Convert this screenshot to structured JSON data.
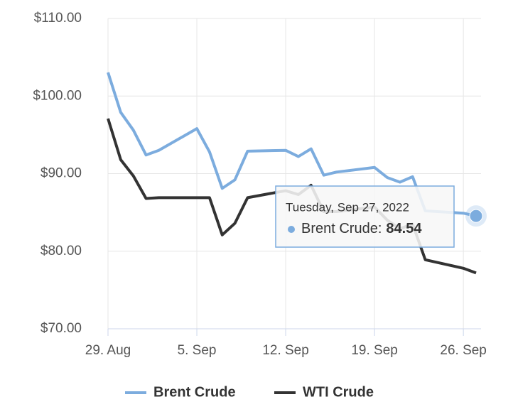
{
  "chart_data": {
    "type": "line",
    "x": [
      "2022-08-29",
      "2022-08-30",
      "2022-08-31",
      "2022-09-01",
      "2022-09-02",
      "2022-09-05",
      "2022-09-06",
      "2022-09-07",
      "2022-09-08",
      "2022-09-09",
      "2022-09-12",
      "2022-09-13",
      "2022-09-14",
      "2022-09-15",
      "2022-09-16",
      "2022-09-19",
      "2022-09-20",
      "2022-09-21",
      "2022-09-22",
      "2022-09-23",
      "2022-09-26",
      "2022-09-27"
    ],
    "series": [
      {
        "name": "Brent Crude",
        "color": "#7cacde",
        "values": [
          103.04,
          97.9,
          95.6,
          92.4,
          93.0,
          95.8,
          92.8,
          88.1,
          89.2,
          92.9,
          93.0,
          92.2,
          93.2,
          89.8,
          90.2,
          90.8,
          89.5,
          88.9,
          89.6,
          85.2,
          84.9,
          84.54
        ]
      },
      {
        "name": "WTI Crude",
        "color": "#333333",
        "values": [
          97.1,
          91.8,
          89.7,
          86.8,
          86.9,
          86.9,
          86.9,
          82.1,
          83.6,
          86.9,
          87.8,
          87.3,
          88.5,
          85.1,
          85.1,
          85.7,
          84.0,
          82.9,
          83.5,
          78.9,
          77.8,
          77.2
        ]
      }
    ],
    "xlim": [
      "2022-08-29",
      "2022-09-27"
    ],
    "xticks": [
      {
        "value": "2022-08-29",
        "label": "29. Aug"
      },
      {
        "value": "2022-09-05",
        "label": "5. Sep"
      },
      {
        "value": "2022-09-12",
        "label": "12. Sep"
      },
      {
        "value": "2022-09-19",
        "label": "19. Sep"
      },
      {
        "value": "2022-09-26",
        "label": "26. Sep"
      }
    ],
    "ylim": [
      70,
      110
    ],
    "yticks": [
      {
        "value": 70,
        "label": "$70.00"
      },
      {
        "value": 80,
        "label": "$80.00"
      },
      {
        "value": 90,
        "label": "$90.00"
      },
      {
        "value": 100,
        "label": "$100.00"
      },
      {
        "value": 110,
        "label": "$110.00"
      }
    ],
    "grid": true,
    "legend": "bottom",
    "tooltip": {
      "date": "Tuesday, Sep 27, 2022",
      "label": "Brent Crude:",
      "series": 0,
      "index": 21
    }
  }
}
